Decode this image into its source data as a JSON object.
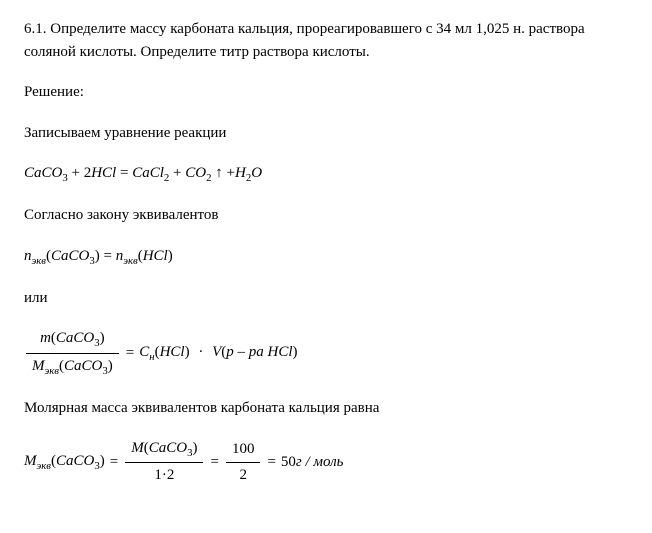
{
  "problem": {
    "number": "6.1.",
    "text": "Определите массу карбоната кальция, прореагировавшего с 34 мл 1,025 н. раствора соляной кислоты. Определите титр раствора кислоты."
  },
  "labels": {
    "solution": "Решение:",
    "write_equation": "Записываем уравнение реакции",
    "by_equiv_law": "Согласно закону эквивалентов",
    "or": "или",
    "molar_mass_equiv": "Молярная масса эквивалентов карбоната кальция равна"
  },
  "chem": {
    "caco3": "CaCO",
    "caco3_sub": "3",
    "hcl": "HCl",
    "cacl2": "CaCl",
    "cacl2_sub": "2",
    "co2": "CO",
    "co2_sub": "2",
    "h2o_h": "H",
    "h2o_sub": "2",
    "h2o_o": "O",
    "two": "2",
    "plus": "+",
    "eq": "=",
    "arrow": "↑"
  },
  "eq2": {
    "n": "n",
    "sub_ekv": "экв",
    "open": "(",
    "close": ")",
    "eq": "="
  },
  "eq3": {
    "m": "m",
    "M": "M",
    "sub_ekv": "экв",
    "caco3": "CaCO",
    "caco3_sub": "3",
    "open": "(",
    "close": ")",
    "eq": "=",
    "C": "C",
    "sub_n": "н",
    "hcl": "HCl",
    "dot": "·",
    "V": "V",
    "p_ra": "р – ра",
    "space": " "
  },
  "eq4": {
    "M": "M",
    "sub_ekv": "экв",
    "caco3": "CaCO",
    "caco3_sub": "3",
    "open": "(",
    "close": ")",
    "eq": "=",
    "num1": "100",
    "den1_a": "1",
    "den1_dot": "·",
    "den1_b": "2",
    "den2": "2",
    "result_val": "50",
    "result_unit": "г / моль"
  }
}
